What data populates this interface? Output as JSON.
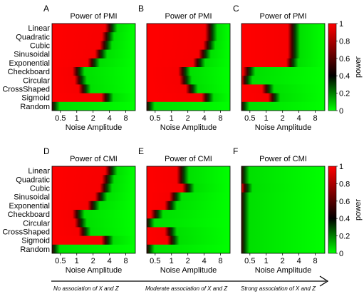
{
  "figure": {
    "footer": [
      "No association of X and Z",
      "Moderate association of X and Z",
      "Strong association of X and Z"
    ]
  },
  "chart_data": [
    {
      "type": "heatmap",
      "panel": "A",
      "title": "Power of PMI",
      "xlabel": "Noise Amplitude",
      "x_tick_labels": [
        "0.5",
        "1",
        "2",
        "4",
        "8"
      ],
      "x_range": [
        0.35,
        12
      ],
      "y_categories": [
        "Linear",
        "Quadratic",
        "Cubic",
        "Sinusoidal",
        "Exponential",
        "Checkboard",
        "Circular",
        "CrossShaped",
        "Sigmoid",
        "Random"
      ],
      "boundary": [
        4.0,
        3.5,
        3.2,
        2.6,
        1.9,
        1.0,
        1.1,
        1.3,
        3.4,
        0.35
      ]
    },
    {
      "type": "heatmap",
      "panel": "B",
      "title": "Power of PMI",
      "xlabel": "Noise Amplitude",
      "x_tick_labels": [
        "0.5",
        "1",
        "2",
        "4",
        "8"
      ],
      "x_range": [
        0.35,
        12
      ],
      "y_categories": [
        "Linear",
        "Quadratic",
        "Cubic",
        "Sinusoidal",
        "Exponential",
        "Checkboard",
        "Circular",
        "CrossShaped",
        "Sigmoid",
        "Random"
      ],
      "boundary": [
        5.0,
        5.0,
        4.6,
        3.8,
        3.0,
        1.6,
        1.7,
        2.2,
        4.3,
        0.35
      ]
    },
    {
      "type": "heatmap",
      "panel": "C",
      "title": "Power of PMI",
      "xlabel": "Noise Amplitude",
      "x_tick_labels": [
        "0.5",
        "1",
        "2",
        "4",
        "8"
      ],
      "x_range": [
        0.35,
        12
      ],
      "y_categories": [
        "Linear",
        "Quadratic",
        "Cubic",
        "Sinusoidal",
        "Exponential",
        "Checkboard",
        "Circular",
        "CrossShaped",
        "Sigmoid",
        "Random"
      ],
      "boundary": [
        3.0,
        3.0,
        3.0,
        3.0,
        2.8,
        0.45,
        0.4,
        1.0,
        1.3,
        0.35
      ],
      "colorbar": {
        "label": "power",
        "ticks": [
          "0",
          "0.2",
          "0.4",
          "0.6",
          "0.8",
          "1"
        ],
        "range": [
          0,
          1
        ]
      }
    },
    {
      "type": "heatmap",
      "panel": "D",
      "title": "Power of CMI",
      "xlabel": "Noise Amplitude",
      "x_tick_labels": [
        "0.5",
        "1",
        "2",
        "4",
        "8"
      ],
      "x_range": [
        0.35,
        12
      ],
      "y_categories": [
        "Linear",
        "Quadratic",
        "Cubic",
        "Sinusoidal",
        "Exponential",
        "Checkboard",
        "Circular",
        "CrossShaped",
        "Sigmoid",
        "Random"
      ],
      "boundary": [
        4.0,
        3.5,
        3.2,
        2.6,
        1.9,
        1.0,
        1.1,
        1.3,
        3.4,
        0.35
      ]
    },
    {
      "type": "heatmap",
      "panel": "E",
      "title": "Power of CMI",
      "xlabel": "Noise Amplitude",
      "x_tick_labels": [
        "0.5",
        "1",
        "2",
        "4",
        "8"
      ],
      "x_range": [
        0.35,
        12
      ],
      "y_categories": [
        "Linear",
        "Quadratic",
        "Cubic",
        "Sinusoidal",
        "Exponential",
        "Checkboard",
        "Circular",
        "CrossShaped",
        "Sigmoid",
        "Random"
      ],
      "boundary": [
        1.5,
        1.5,
        1.9,
        1.1,
        0.9,
        0.5,
        0.35,
        0.9,
        1.0,
        0.35
      ]
    },
    {
      "type": "heatmap",
      "panel": "F",
      "title": "Power of CMI",
      "xlabel": "Noise Amplitude",
      "x_tick_labels": [
        "0.5",
        "1",
        "2",
        "4",
        "8"
      ],
      "x_range": [
        0.35,
        12
      ],
      "y_categories": [
        "Linear",
        "Quadratic",
        "Cubic",
        "Sinusoidal",
        "Exponential",
        "Checkboard",
        "Circular",
        "CrossShaped",
        "Sigmoid",
        "Random"
      ],
      "boundary": [
        0.35,
        0.35,
        0.4,
        0.35,
        0.35,
        0.35,
        0.35,
        0.35,
        0.35,
        0.35
      ],
      "colorbar": {
        "label": "power",
        "ticks": [
          "0",
          "0.2",
          "0.4",
          "0.6",
          "0.8",
          "1"
        ],
        "range": [
          0,
          1
        ]
      }
    }
  ]
}
